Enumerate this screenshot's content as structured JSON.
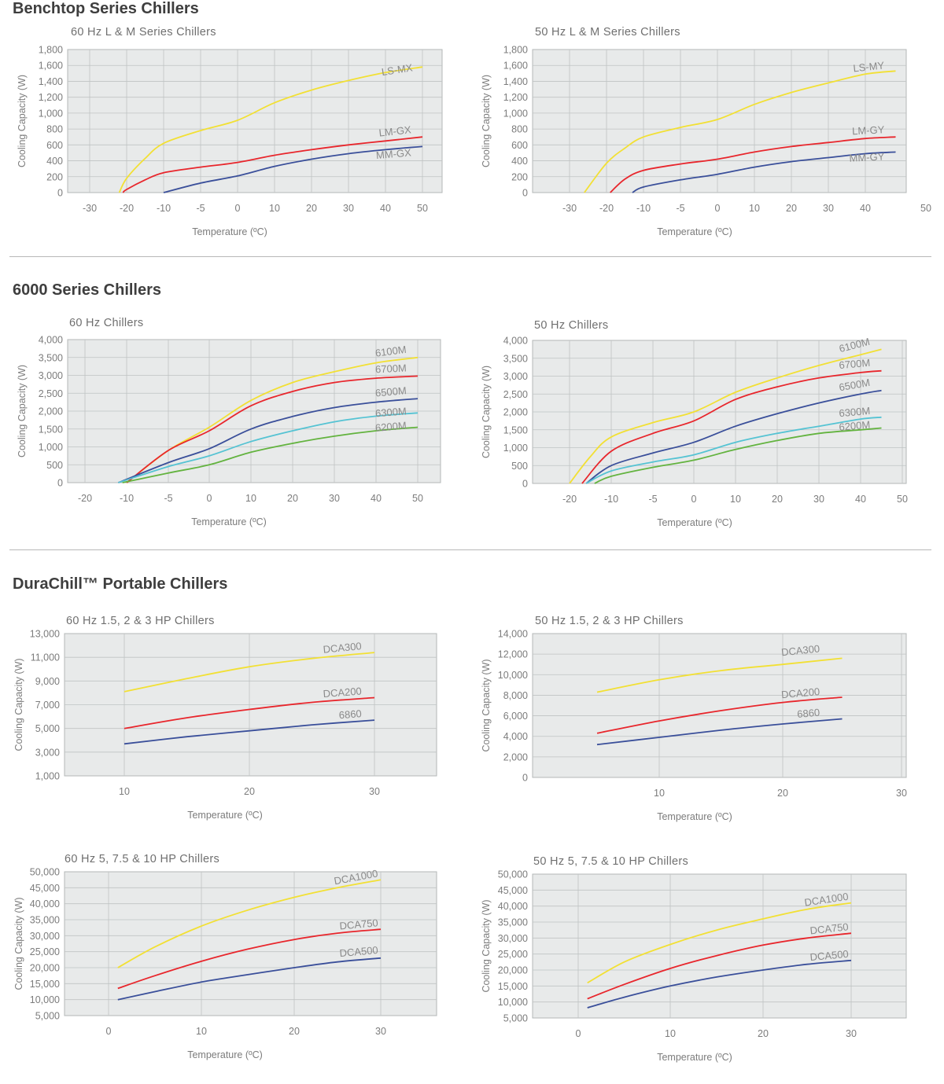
{
  "sections": [
    {
      "title": "Benchtop Series Chillers"
    },
    {
      "title": "6000 Series Chillers"
    },
    {
      "title": "DuraChill™ Portable Chillers"
    }
  ],
  "colors": {
    "yellow": "#f2e034",
    "red": "#e8262c",
    "blue": "#3a4f9a",
    "cyan": "#55c3d3",
    "green": "#63b33f",
    "plot_bg": "#e8eaea",
    "grid": "#bfc3c3",
    "axis_text": "#7c7c7c",
    "title_text": "#6f6f6f"
  },
  "chart_data": [
    {
      "type": "line",
      "title": "60 Hz L & M Series Chillers",
      "xlabel": "Temperature (ºC)",
      "ylabel": "Cooling Capacity (W)",
      "x_ticks": [
        "-30",
        "-20",
        "-10",
        "-5",
        "0",
        "10",
        "20",
        "30",
        "40",
        "50"
      ],
      "y_ticks": [
        "1,800",
        "1,600",
        "1,400",
        "1,200",
        "1,000",
        "800",
        "600",
        "400",
        "200",
        "0"
      ],
      "ylim": [
        0,
        1800
      ],
      "grid": true,
      "series": [
        {
          "name": "LS-MX",
          "color": "#f2e034",
          "x": [
            -22,
            -20,
            -15,
            -10,
            -5,
            0,
            10,
            20,
            30,
            40,
            50
          ],
          "y": [
            0,
            180,
            430,
            620,
            780,
            910,
            1130,
            1290,
            1410,
            1510,
            1580
          ]
        },
        {
          "name": "LM-GX",
          "color": "#e8262c",
          "x": [
            -21,
            -20,
            -15,
            -10,
            -5,
            0,
            10,
            20,
            30,
            40,
            50
          ],
          "y": [
            0,
            40,
            160,
            250,
            320,
            380,
            470,
            540,
            600,
            650,
            700
          ]
        },
        {
          "name": "MM-GX",
          "color": "#3a4f9a",
          "x": [
            -10,
            -5,
            0,
            10,
            20,
            30,
            40,
            50
          ],
          "y": [
            0,
            120,
            210,
            330,
            420,
            490,
            540,
            580
          ]
        }
      ]
    },
    {
      "type": "line",
      "title": "50 Hz L & M Series Chillers",
      "xlabel": "Temperature (ºC)",
      "ylabel": "Cooling Capacity (W)",
      "x_ticks": [
        "-30",
        "-20",
        "-10",
        "-5",
        "0",
        "10",
        "20",
        "30",
        "40",
        "50"
      ],
      "y_ticks": [
        "1,800",
        "1,600",
        "1,400",
        "1,200",
        "1,000",
        "800",
        "600",
        "400",
        "200",
        "0"
      ],
      "ylim": [
        0,
        1800
      ],
      "grid": true,
      "series": [
        {
          "name": "LS-MY",
          "color": "#f2e034",
          "x": [
            -26,
            -20,
            -15,
            -10,
            -5,
            0,
            10,
            20,
            30,
            40,
            45
          ],
          "y": [
            0,
            370,
            560,
            700,
            820,
            920,
            1110,
            1260,
            1380,
            1490,
            1530
          ]
        },
        {
          "name": "LM-GY",
          "color": "#e8262c",
          "x": [
            -19,
            -15,
            -10,
            -5,
            0,
            10,
            20,
            30,
            40,
            45
          ],
          "y": [
            0,
            170,
            280,
            360,
            420,
            510,
            580,
            630,
            680,
            700
          ]
        },
        {
          "name": "MM-GY",
          "color": "#3a4f9a",
          "x": [
            -13,
            -10,
            -5,
            0,
            10,
            20,
            30,
            40,
            45
          ],
          "y": [
            0,
            70,
            160,
            230,
            320,
            390,
            440,
            490,
            510
          ]
        }
      ]
    },
    {
      "type": "line",
      "title": "60 Hz Chillers",
      "xlabel": "Temperature (ºC)",
      "ylabel": "Cooling Capacity (W)",
      "x_ticks": [
        "-20",
        "-10",
        "-5",
        "0",
        "10",
        "20",
        "30",
        "40",
        "50"
      ],
      "y_ticks": [
        "4,000",
        "3,500",
        "3,000",
        "2,500",
        "2,000",
        "1,500",
        "1,000",
        "500",
        "0"
      ],
      "ylim": [
        0,
        4000
      ],
      "grid": true,
      "series": [
        {
          "name": "6100M",
          "color": "#f2e034",
          "x": [
            -10,
            -5,
            0,
            10,
            20,
            30,
            40,
            50
          ],
          "y": [
            0,
            900,
            1550,
            2300,
            2800,
            3100,
            3350,
            3500
          ]
        },
        {
          "name": "6700M",
          "color": "#e8262c",
          "x": [
            -10,
            -5,
            0,
            10,
            20,
            30,
            40,
            50
          ],
          "y": [
            0,
            900,
            1450,
            2150,
            2550,
            2800,
            2920,
            2980
          ]
        },
        {
          "name": "6500M",
          "color": "#3a4f9a",
          "x": [
            -12,
            -5,
            0,
            10,
            20,
            30,
            40,
            50
          ],
          "y": [
            0,
            560,
            950,
            1500,
            1850,
            2100,
            2250,
            2350
          ]
        },
        {
          "name": "6300M",
          "color": "#55c3d3",
          "x": [
            -12,
            -5,
            0,
            10,
            20,
            30,
            40,
            50
          ],
          "y": [
            0,
            450,
            750,
            1150,
            1450,
            1700,
            1860,
            1950
          ]
        },
        {
          "name": "6200M",
          "color": "#63b33f",
          "x": [
            -11,
            -5,
            0,
            10,
            20,
            30,
            40,
            50
          ],
          "y": [
            0,
            270,
            500,
            850,
            1100,
            1300,
            1450,
            1550
          ]
        }
      ]
    },
    {
      "type": "line",
      "title": "50 Hz Chillers",
      "xlabel": "Temperature (ºC)",
      "ylabel": "Cooling Capacity (W)",
      "x_ticks": [
        "-20",
        "-10",
        "-5",
        "0",
        "10",
        "20",
        "30",
        "40",
        "50"
      ],
      "y_ticks": [
        "4,000",
        "3,500",
        "3,000",
        "2,500",
        "2,000",
        "1,500",
        "1,000",
        "500",
        "0"
      ],
      "ylim": [
        0,
        4000
      ],
      "grid": true,
      "series": [
        {
          "name": "6100M",
          "color": "#f2e034",
          "x": [
            -20,
            -15,
            -10,
            -5,
            0,
            10,
            20,
            30,
            40,
            45
          ],
          "y": [
            0,
            750,
            1300,
            1700,
            2000,
            2550,
            2950,
            3300,
            3600,
            3750
          ]
        },
        {
          "name": "6700M",
          "color": "#e8262c",
          "x": [
            -17,
            -10,
            -5,
            0,
            10,
            20,
            30,
            40,
            45
          ],
          "y": [
            0,
            900,
            1400,
            1750,
            2350,
            2700,
            2950,
            3100,
            3150
          ]
        },
        {
          "name": "6500M",
          "color": "#3a4f9a",
          "x": [
            -16,
            -10,
            -5,
            0,
            10,
            20,
            30,
            40,
            45
          ],
          "y": [
            0,
            500,
            850,
            1150,
            1600,
            1950,
            2250,
            2500,
            2600
          ]
        },
        {
          "name": "6300M",
          "color": "#55c3d3",
          "x": [
            -16,
            -10,
            -5,
            0,
            10,
            20,
            30,
            40,
            45
          ],
          "y": [
            0,
            350,
            600,
            800,
            1150,
            1400,
            1600,
            1800,
            1850
          ]
        },
        {
          "name": "6200M",
          "color": "#63b33f",
          "x": [
            -14,
            -10,
            -5,
            0,
            10,
            20,
            30,
            40,
            45
          ],
          "y": [
            0,
            200,
            450,
            650,
            950,
            1200,
            1400,
            1500,
            1550
          ]
        }
      ]
    },
    {
      "type": "line",
      "title": "60 Hz 1.5, 2 & 3 HP Chillers",
      "xlabel": "Temperature (ºC)",
      "ylabel": "Cooling Capacity (W)",
      "x_ticks": [
        "10",
        "20",
        "30"
      ],
      "y_ticks": [
        "13,000",
        "11,000",
        "9,000",
        "7,000",
        "5,000",
        "3,000",
        "1,000"
      ],
      "ylim": [
        1000,
        13000
      ],
      "grid": true,
      "series": [
        {
          "name": "DCA300",
          "color": "#f2e034",
          "x": [
            10,
            15,
            20,
            25,
            30
          ],
          "y": [
            8100,
            9200,
            10200,
            10900,
            11400
          ]
        },
        {
          "name": "DCA200",
          "color": "#e8262c",
          "x": [
            10,
            15,
            20,
            25,
            30
          ],
          "y": [
            5000,
            5900,
            6600,
            7200,
            7600
          ]
        },
        {
          "name": "6860",
          "color": "#3a4f9a",
          "x": [
            10,
            15,
            20,
            25,
            30
          ],
          "y": [
            3700,
            4300,
            4800,
            5300,
            5700
          ]
        }
      ]
    },
    {
      "type": "line",
      "title": "50 Hz 1.5, 2 & 3 HP Chillers",
      "xlabel": "Temperature (ºC)",
      "ylabel": "Cooling Capacity (W)",
      "x_ticks": [
        "10",
        "20",
        "30"
      ],
      "y_ticks": [
        "14,000",
        "12,000",
        "10,000",
        "8,000",
        "6,000",
        "4,000",
        "2,000",
        "0"
      ],
      "ylim": [
        0,
        14000
      ],
      "grid": true,
      "series": [
        {
          "name": "DCA300",
          "color": "#f2e034",
          "x": [
            5,
            10,
            15,
            20,
            25
          ],
          "y": [
            8300,
            9500,
            10400,
            11000,
            11600
          ]
        },
        {
          "name": "DCA200",
          "color": "#e8262c",
          "x": [
            5,
            10,
            15,
            20,
            25
          ],
          "y": [
            4300,
            5500,
            6500,
            7300,
            7800
          ]
        },
        {
          "name": "6860",
          "color": "#3a4f9a",
          "x": [
            5,
            10,
            15,
            20,
            25
          ],
          "y": [
            3200,
            3900,
            4600,
            5200,
            5700
          ]
        }
      ]
    },
    {
      "type": "line",
      "title": "60 Hz 5, 7.5 & 10 HP Chillers",
      "xlabel": "Temperature (ºC)",
      "ylabel": "Cooling Capacity (W)",
      "x_ticks": [
        "0",
        "10",
        "20",
        "30"
      ],
      "y_ticks": [
        "50,000",
        "45,000",
        "40,000",
        "35,000",
        "30,000",
        "25,000",
        "20,000",
        "15,000",
        "10,000",
        "5,000"
      ],
      "ylim": [
        5000,
        50000
      ],
      "grid": true,
      "series": [
        {
          "name": "DCA1000",
          "color": "#f2e034",
          "x": [
            1,
            5,
            10,
            15,
            20,
            25,
            30
          ],
          "y": [
            20000,
            26500,
            33000,
            38000,
            42000,
            45000,
            47500
          ]
        },
        {
          "name": "DCA750",
          "color": "#e8262c",
          "x": [
            1,
            5,
            10,
            15,
            20,
            25,
            30
          ],
          "y": [
            13500,
            17500,
            22000,
            25800,
            28800,
            30800,
            32000
          ]
        },
        {
          "name": "DCA500",
          "color": "#3a4f9a",
          "x": [
            1,
            5,
            10,
            15,
            20,
            25,
            30
          ],
          "y": [
            10000,
            12500,
            15500,
            17800,
            20000,
            21800,
            23000
          ]
        }
      ]
    },
    {
      "type": "line",
      "title": "50 Hz 5, 7.5 & 10 HP Chillers",
      "xlabel": "Temperature (ºC)",
      "ylabel": "Cooling Capacity (W)",
      "x_ticks": [
        "0",
        "10",
        "20",
        "30"
      ],
      "y_ticks": [
        "50,000",
        "45,000",
        "40,000",
        "35,000",
        "30,000",
        "25,000",
        "20,000",
        "15,000",
        "10,000",
        "5,000"
      ],
      "ylim": [
        5000,
        50000
      ],
      "grid": true,
      "series": [
        {
          "name": "DCA1000",
          "color": "#f2e034",
          "x": [
            1,
            5,
            10,
            15,
            20,
            25,
            30
          ],
          "y": [
            16000,
            22500,
            28000,
            32500,
            36000,
            39000,
            41000
          ]
        },
        {
          "name": "DCA750",
          "color": "#e8262c",
          "x": [
            1,
            5,
            10,
            15,
            20,
            25,
            30
          ],
          "y": [
            11000,
            15500,
            20500,
            24500,
            27800,
            30000,
            31500
          ]
        },
        {
          "name": "DCA500",
          "color": "#3a4f9a",
          "x": [
            1,
            5,
            10,
            15,
            20,
            25,
            30
          ],
          "y": [
            8200,
            11500,
            15000,
            17800,
            20000,
            21800,
            23000
          ]
        }
      ]
    }
  ]
}
